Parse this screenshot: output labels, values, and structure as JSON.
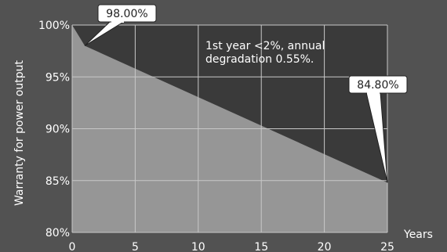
{
  "chart_data": {
    "type": "area",
    "x": [
      0,
      1,
      25
    ],
    "series": [
      {
        "values": [
          100,
          98.0,
          84.8
        ]
      }
    ],
    "xlim": [
      0,
      25
    ],
    "ylim": [
      80,
      100
    ],
    "xticks": [
      "0",
      "5",
      "10",
      "15",
      "20",
      "25"
    ],
    "yticks": [
      "80%",
      "85%",
      "90%",
      "95%",
      "100%"
    ],
    "xlabel": "Years",
    "ylabel": "Warranty for power output",
    "grid": true,
    "annotation": [
      "1st year <2%, annual",
      "degradation 0.55%."
    ],
    "callouts": [
      {
        "label": "98.00%",
        "x": 1,
        "y": 98.0
      },
      {
        "label": "84.80%",
        "x": 25,
        "y": 84.8
      }
    ],
    "colors": {
      "background": "#525252",
      "plot_area": "#3a3a3a",
      "fill": "#969696",
      "grid": "#c8c8c8",
      "callout_fill": "#ffffff"
    }
  }
}
